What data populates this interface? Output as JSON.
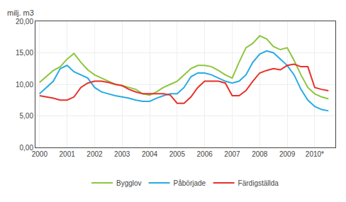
{
  "chart_data": {
    "type": "line",
    "ylabel": "milj. m3",
    "x": [
      2000.0,
      2000.25,
      2000.5,
      2000.75,
      2001.0,
      2001.25,
      2001.5,
      2001.75,
      2002.0,
      2002.25,
      2002.5,
      2002.75,
      2003.0,
      2003.25,
      2003.5,
      2003.75,
      2004.0,
      2004.25,
      2004.5,
      2004.75,
      2005.0,
      2005.25,
      2005.5,
      2005.75,
      2006.0,
      2006.25,
      2006.5,
      2006.75,
      2007.0,
      2007.25,
      2007.5,
      2007.75,
      2008.0,
      2008.25,
      2008.5,
      2008.75,
      2009.0,
      2009.25,
      2009.5,
      2009.75,
      2010.0,
      2010.25,
      2010.5
    ],
    "series": [
      {
        "name": "Bygglov",
        "color": "#8dc63f",
        "values": [
          10.3,
          11.2,
          12.2,
          12.8,
          14.0,
          14.9,
          13.5,
          12.3,
          11.5,
          11.0,
          10.5,
          10.0,
          9.8,
          9.5,
          9.2,
          8.5,
          8.3,
          8.8,
          9.5,
          10.0,
          10.5,
          11.5,
          12.5,
          13.0,
          13.0,
          12.8,
          12.2,
          11.5,
          11.0,
          13.5,
          15.8,
          16.5,
          17.7,
          17.2,
          16.0,
          15.5,
          15.8,
          13.8,
          11.5,
          9.5,
          8.5,
          8.0,
          7.7
        ]
      },
      {
        "name": "Påbörjade",
        "color": "#29abe2",
        "values": [
          8.5,
          9.5,
          10.5,
          12.5,
          13.0,
          12.0,
          11.5,
          11.0,
          9.5,
          8.8,
          8.5,
          8.2,
          8.0,
          7.8,
          7.5,
          7.3,
          7.3,
          7.8,
          8.2,
          8.5,
          8.5,
          9.5,
          11.2,
          11.8,
          11.8,
          11.5,
          11.0,
          10.5,
          10.2,
          10.5,
          11.5,
          13.5,
          14.8,
          15.3,
          15.0,
          14.0,
          13.0,
          11.5,
          9.2,
          7.5,
          6.5,
          6.0,
          5.8
        ]
      },
      {
        "name": "Färdigställda",
        "color": "#e8312a",
        "values": [
          8.2,
          8.0,
          7.8,
          7.5,
          7.5,
          8.0,
          9.5,
          10.2,
          10.5,
          10.5,
          10.3,
          10.0,
          9.8,
          9.2,
          8.8,
          8.5,
          8.5,
          8.5,
          8.5,
          8.3,
          7.0,
          7.0,
          8.0,
          9.5,
          10.5,
          10.5,
          10.5,
          10.2,
          8.2,
          8.2,
          9.0,
          10.5,
          11.8,
          12.2,
          12.5,
          12.3,
          13.0,
          13.2,
          12.8,
          12.8,
          9.5,
          9.2,
          9.0
        ]
      }
    ],
    "xlim": [
      1999.85,
      2010.75
    ],
    "xticks": [
      2000,
      2001,
      2002,
      2003,
      2004,
      2005,
      2006,
      2007,
      2008,
      2009,
      {
        "value": 2010,
        "label": "2010*"
      }
    ],
    "ylim": [
      0,
      20
    ],
    "yticks": [
      {
        "value": 0,
        "label": "0,00"
      },
      {
        "value": 5,
        "label": "5,00"
      },
      {
        "value": 10,
        "label": "10,00"
      },
      {
        "value": 15,
        "label": "15,00"
      },
      {
        "value": 20,
        "label": "20,00"
      }
    ],
    "grid": true,
    "legend": "bottom"
  }
}
